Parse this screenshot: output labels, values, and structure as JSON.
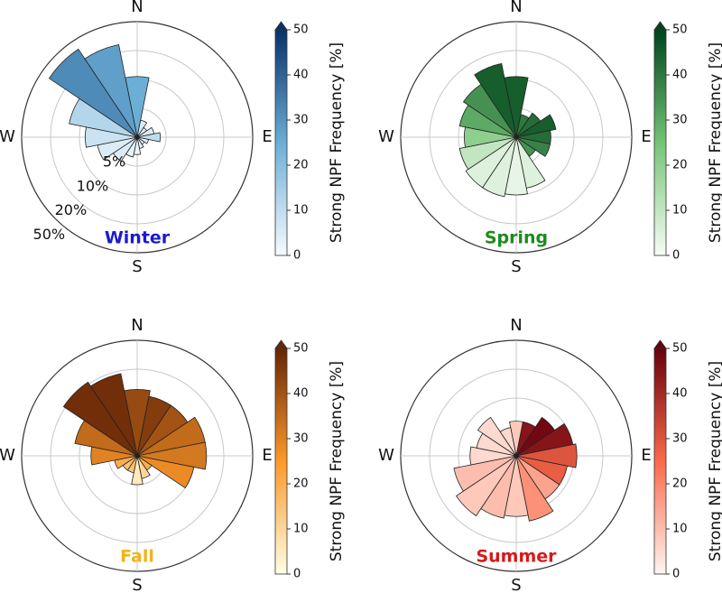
{
  "chart_data": [
    {
      "type": "polar-bar",
      "title": "Winter",
      "title_color": "#1a1ad0",
      "directions": [
        "N",
        "E",
        "S",
        "W"
      ],
      "x": [
        0,
        22.5,
        45,
        67.5,
        90,
        112.5,
        135,
        157.5,
        180,
        202.5,
        225,
        247.5,
        270,
        292.5,
        315,
        337.5
      ],
      "values": [
        11,
        3,
        2,
        3,
        4,
        2,
        1.5,
        2,
        3,
        3.5,
        5,
        7,
        9,
        14,
        40,
        28
      ],
      "npf": [
        25,
        5,
        3,
        5,
        10,
        3,
        2,
        3,
        2,
        3,
        5,
        5,
        8,
        12,
        32,
        28
      ],
      "rlim": [
        0,
        50
      ],
      "rticks": [
        {
          "value": 5,
          "label": "5%"
        },
        {
          "value": 10,
          "label": "10%"
        },
        {
          "value": 20,
          "label": "20%"
        },
        {
          "value": 50,
          "label": "50%"
        }
      ],
      "colormap": [
        "#f7fbff",
        "#6baed6",
        "#08306b"
      ],
      "colorbar_label": "Strong NPF Frequency [%]",
      "clim": [
        0,
        50
      ],
      "cbticks": [
        0,
        10,
        20,
        30,
        40,
        50
      ]
    },
    {
      "type": "polar-bar",
      "title": "Spring",
      "title_color": "#1e8a1e",
      "directions": [
        "N",
        "E",
        "S",
        "W"
      ],
      "x": [
        0,
        22.5,
        45,
        67.5,
        90,
        112.5,
        135,
        157.5,
        180,
        202.5,
        225,
        247.5,
        270,
        292.5,
        315,
        337.5
      ],
      "values": [
        11,
        4,
        5,
        7,
        6,
        6,
        4,
        9,
        10,
        11,
        11,
        10,
        9,
        10,
        12,
        16
      ],
      "npf": [
        45,
        40,
        42,
        45,
        42,
        38,
        35,
        5,
        3,
        5,
        5,
        10,
        20,
        30,
        35,
        45
      ],
      "rlim": [
        0,
        50
      ],
      "rticks": [
        5,
        10,
        20,
        50
      ],
      "colormap": [
        "#f7fcf5",
        "#74c476",
        "#00441b"
      ],
      "colorbar_label": "Strong NPF Frequency [%]",
      "clim": [
        0,
        50
      ],
      "cbticks": [
        0,
        10,
        20,
        30,
        40,
        50
      ]
    },
    {
      "type": "polar-bar",
      "title": "Fall",
      "title_color": "#f0b419",
      "directions": [
        "N",
        "E",
        "S",
        "W"
      ],
      "x": [
        0,
        22.5,
        45,
        67.5,
        90,
        112.5,
        135,
        157.5,
        180,
        202.5,
        225,
        247.5,
        270,
        292.5,
        315,
        337.5
      ],
      "values": [
        13,
        11,
        11,
        14,
        14,
        10,
        3,
        4,
        5,
        3,
        3,
        4,
        8,
        12,
        22,
        19
      ],
      "npf": [
        42,
        45,
        40,
        35,
        32,
        28,
        20,
        10,
        5,
        15,
        15,
        20,
        30,
        35,
        48,
        48
      ],
      "rlim": [
        0,
        50
      ],
      "rticks": [
        5,
        10,
        20,
        50
      ],
      "colormap": [
        "#ffffe5",
        "#fe9929",
        "#662506"
      ],
      "colorbar_label": "Strong NPF Frequency [%]",
      "clim": [
        0,
        50
      ],
      "cbticks": [
        0,
        10,
        20,
        30,
        40,
        50
      ]
    },
    {
      "type": "polar-bar",
      "title": "Summer",
      "title_color": "#d81818",
      "directions": [
        "N",
        "E",
        "S",
        "W"
      ],
      "x": [
        0,
        22.5,
        45,
        67.5,
        90,
        112.5,
        135,
        157.5,
        180,
        202.5,
        225,
        247.5,
        270,
        292.5,
        315,
        337.5
      ],
      "values": [
        6,
        6,
        8,
        10,
        11,
        9,
        9,
        13,
        11,
        12,
        15,
        12,
        8,
        7,
        8,
        5
      ],
      "npf": [
        8,
        45,
        48,
        45,
        30,
        28,
        15,
        18,
        8,
        10,
        8,
        10,
        5,
        5,
        5,
        5
      ],
      "rlim": [
        0,
        50
      ],
      "rticks": [
        5,
        10,
        20,
        50
      ],
      "colormap": [
        "#fff5f0",
        "#fb6a4a",
        "#67000d"
      ],
      "colorbar_label": "Strong NPF Frequency [%]",
      "clim": [
        0,
        50
      ],
      "cbticks": [
        0,
        10,
        20,
        30,
        40,
        50
      ]
    }
  ]
}
